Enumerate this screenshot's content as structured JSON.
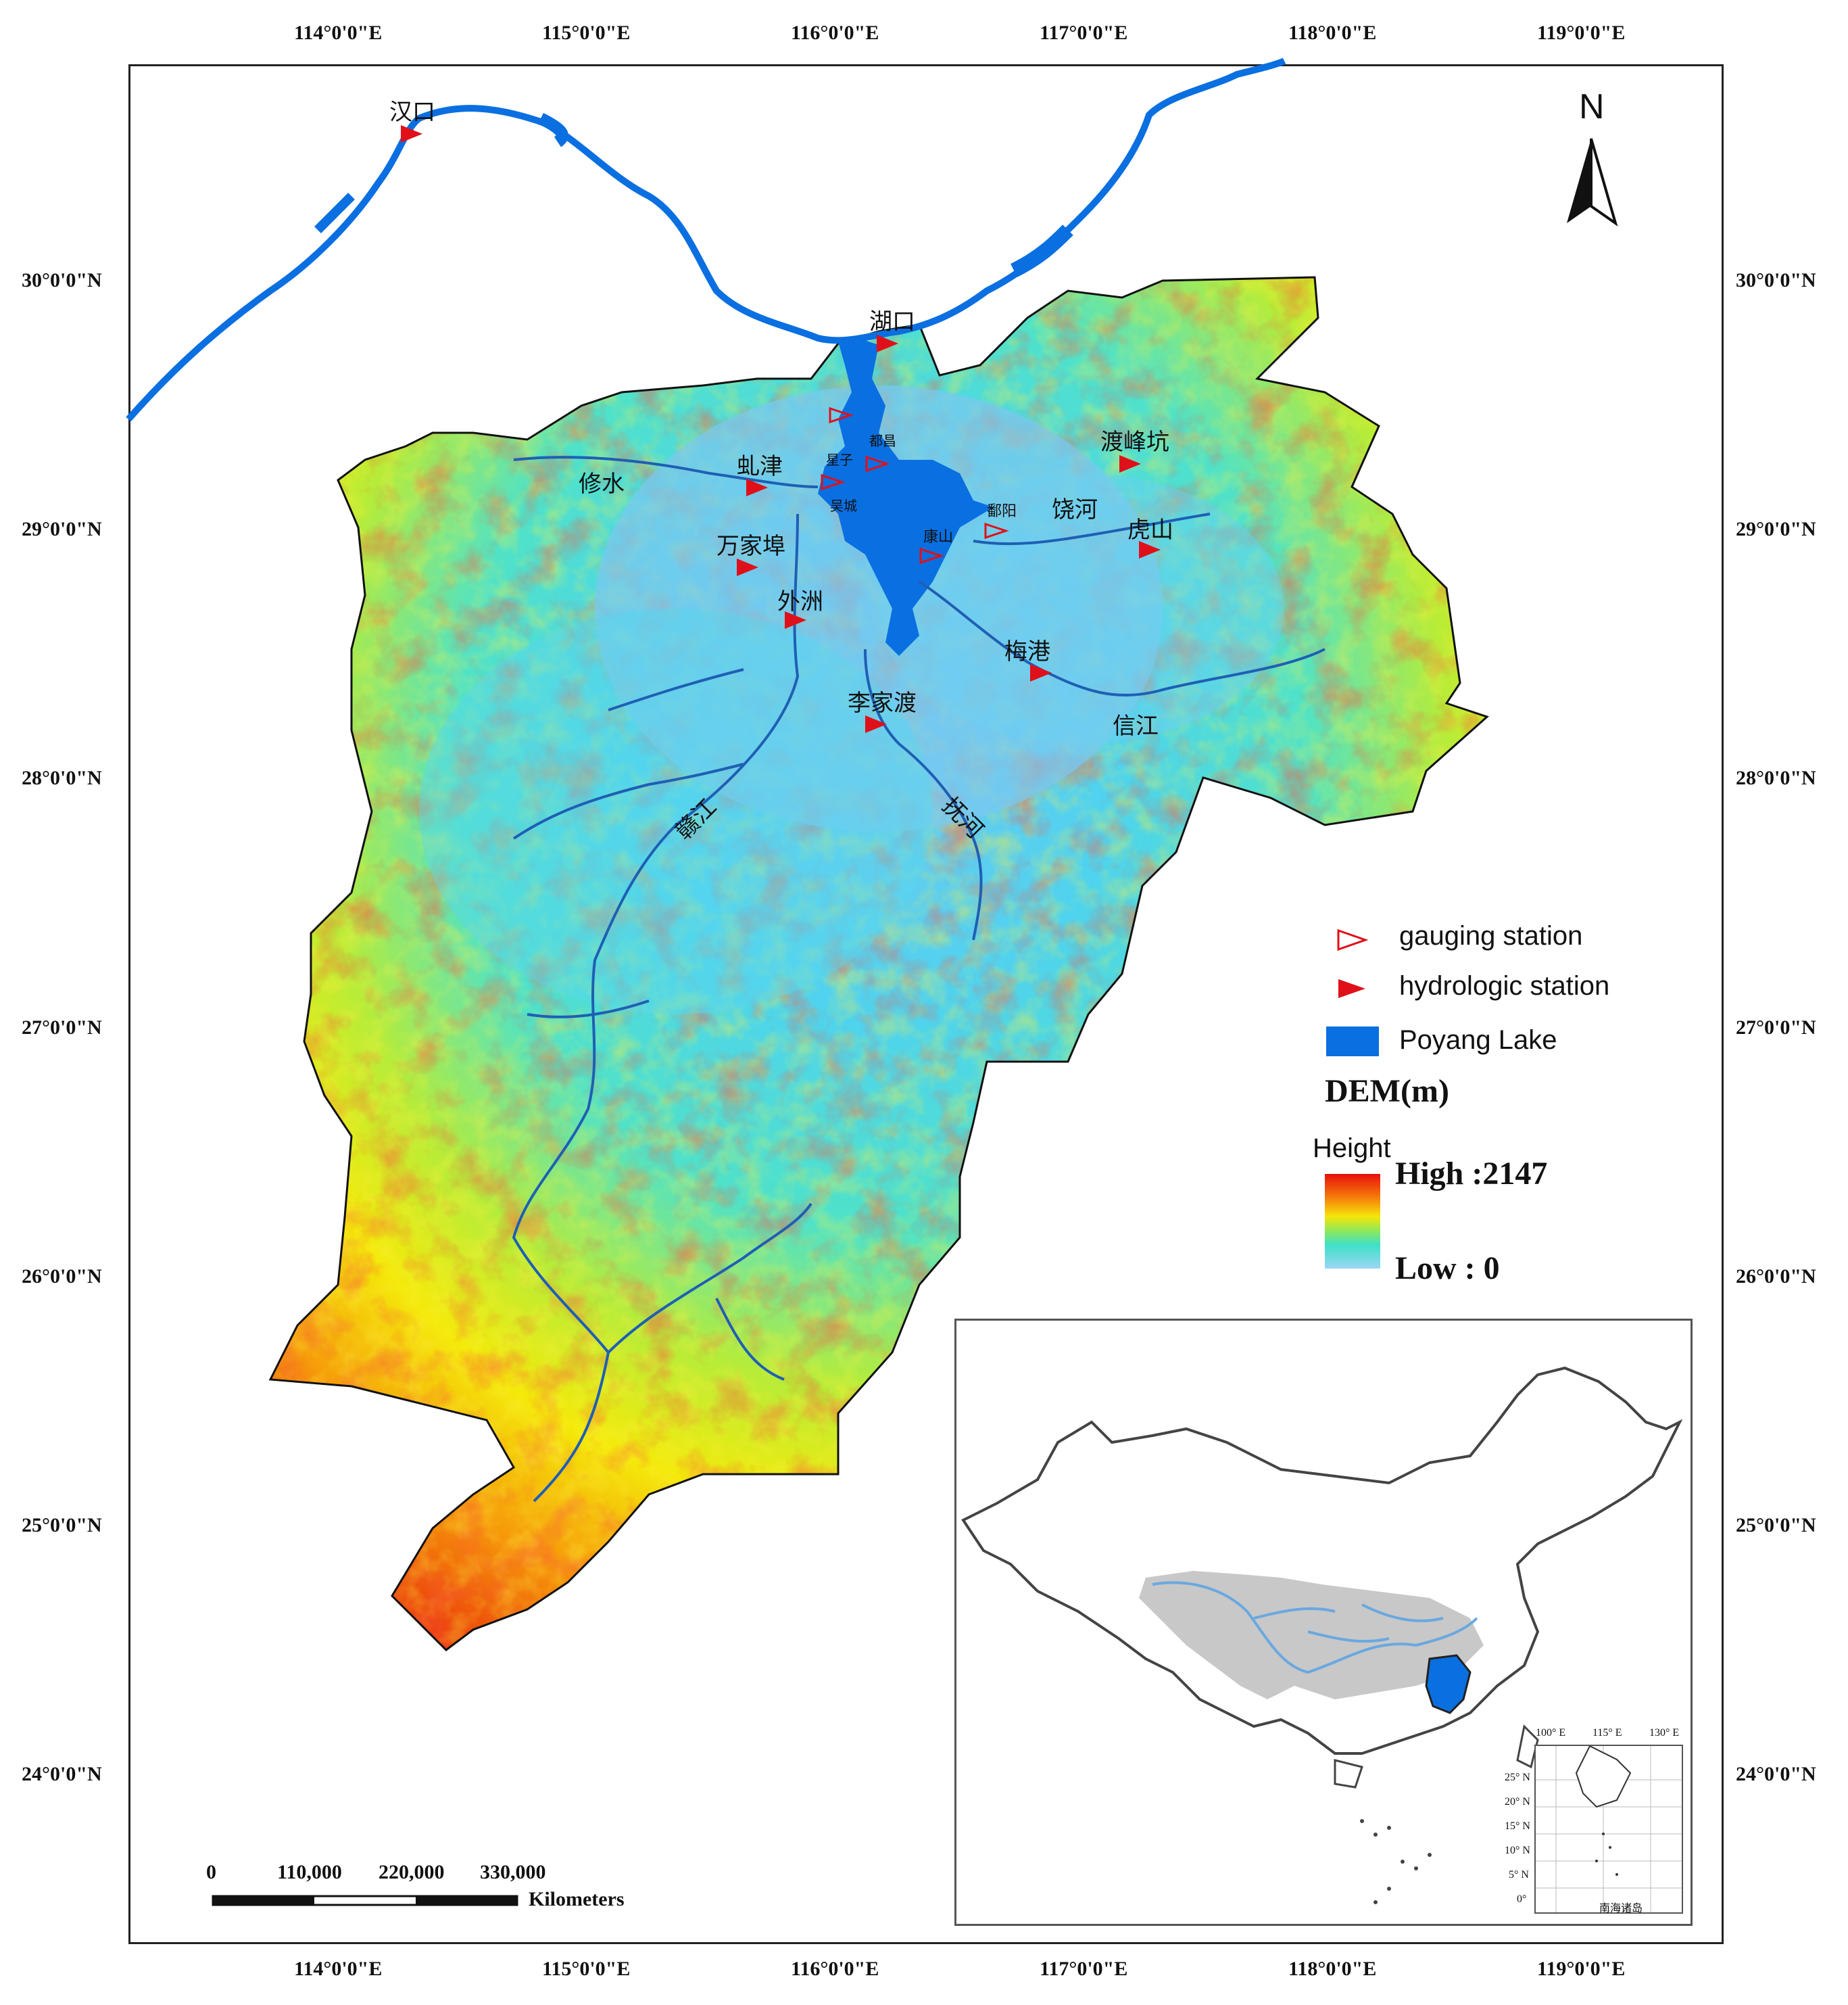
{
  "axes": {
    "longitude_labels": [
      "114°0'0\"E",
      "115°0'0\"E",
      "116°0'0\"E",
      "117°0'0\"E",
      "118°0'0\"E",
      "119°0'0\"E"
    ],
    "latitude_labels": [
      "30°0'0\"N",
      "29°0'0\"N",
      "28°0'0\"N",
      "27°0'0\"N",
      "26°0'0\"N",
      "25°0'0\"N",
      "24°0'0\"N"
    ]
  },
  "north_arrow": {
    "label": "N"
  },
  "places": {
    "hankou": "汉口",
    "hukou": "湖口",
    "qiujin": "虬津",
    "xiushui": "修水",
    "wanjiabu": "万家埠",
    "waizhou": "外洲",
    "lijiadu": "李家渡",
    "meigang": "梅港",
    "xinjiang": "信江",
    "dufengkeng": "渡峰坑",
    "raohe": "饶河",
    "hushan": "虎山",
    "ganjiang": "赣江",
    "fuhe": "抚河",
    "duchang": "都昌",
    "xingzi": "星子",
    "wucheng": "吴城",
    "kangshan": "康山",
    "poyang": "鄱阳"
  },
  "legend": {
    "gauging_station": "gauging station",
    "hydrologic_station": "hydrologic station",
    "poyang_lake": "Poyang Lake",
    "dem_title": "DEM(m)",
    "height_label": "Height",
    "high_label": "High :2147",
    "low_label": "Low : 0"
  },
  "colors": {
    "lake": "#0a6fe0",
    "river": "#1f5fb4",
    "station": "#e0101a",
    "dem_high": "#e8100c",
    "dem_mid_high": "#f6e60a",
    "dem_mid": "#3fe0c8",
    "dem_low": "#9bd6f4",
    "basin_grey": "#c8c8c8"
  },
  "scalebar": {
    "ticks": [
      "0",
      "110,000",
      "220,000",
      "330,000"
    ],
    "unit": "Kilometers"
  },
  "inset": {
    "mini_lon_labels": [
      "100° E",
      "115° E",
      "130° E"
    ],
    "mini_lat_labels": [
      "25° N",
      "20° N",
      "15° N",
      "10° N",
      "5° N",
      "0°"
    ],
    "mini_caption": "南海诸岛"
  }
}
